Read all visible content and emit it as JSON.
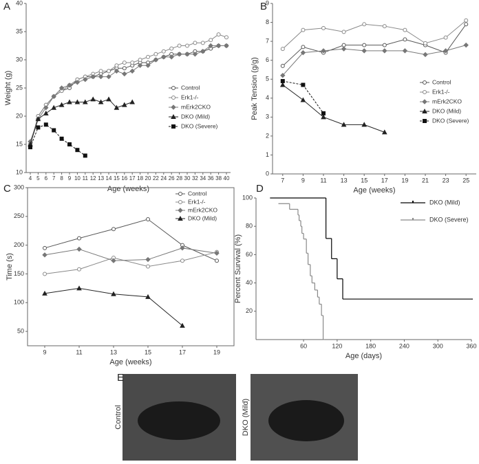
{
  "chart_data": [
    {
      "type": "line",
      "panel": "A",
      "x_label": "Age (weeks)",
      "y_label": "Weight (g)",
      "categories": [
        "4",
        "5",
        "6",
        "7",
        "8",
        "9",
        "10",
        "11",
        "12",
        "13",
        "14",
        "15",
        "16",
        "17",
        "18",
        "20",
        "22",
        "24",
        "26",
        "28",
        "30",
        "32",
        "34",
        "36",
        "38",
        "40"
      ],
      "ylim": [
        10,
        40
      ],
      "yticks": [
        10,
        15,
        20,
        25,
        30,
        35,
        40
      ],
      "series": [
        {
          "name": "Control",
          "color": "#555555",
          "marker": "open-circle",
          "values": [
            15,
            20,
            22,
            23.5,
            24.5,
            25,
            26.5,
            27,
            27,
            27.5,
            28,
            28.5,
            28.5,
            29,
            29.5,
            29.5,
            30,
            30.5,
            31,
            31,
            31,
            31.5,
            31.5,
            32,
            32.5,
            32.5
          ]
        },
        {
          "name": "Erk1-/-",
          "color": "#888888",
          "marker": "open-circle",
          "values": [
            15,
            20,
            22,
            23.5,
            24.5,
            25.5,
            26.5,
            27,
            27.5,
            28,
            28,
            29,
            29.5,
            29.5,
            30,
            30.5,
            31,
            31.5,
            32,
            32.5,
            32.5,
            33,
            33,
            33.5,
            34.5,
            34
          ]
        },
        {
          "name": "mErk2CKO",
          "color": "#777777",
          "marker": "diamond",
          "values": [
            15.5,
            19.5,
            21.5,
            23.5,
            25,
            25.5,
            26,
            26.5,
            27,
            27,
            27,
            28,
            27.5,
            28,
            29,
            29,
            30,
            30.5,
            30.5,
            31,
            31,
            31,
            31.5,
            32.5,
            32.5,
            32.5
          ]
        },
        {
          "name": "DKO (Mild)",
          "color": "#222222",
          "marker": "triangle",
          "values": [
            15,
            19.5,
            20.5,
            21.5,
            22,
            22.5,
            22.5,
            22.5,
            23,
            22.5,
            23,
            21.5,
            22,
            22.5,
            null,
            null,
            null,
            null,
            null,
            null,
            null,
            null,
            null,
            null,
            null,
            null
          ]
        },
        {
          "name": "DKO (Severe)",
          "color": "#111111",
          "marker": "square",
          "dash": true,
          "values": [
            14.5,
            18,
            18.5,
            17.5,
            16,
            15,
            14,
            13,
            null,
            null,
            null,
            null,
            null,
            null,
            null,
            null,
            null,
            null,
            null,
            null,
            null,
            null,
            null,
            null,
            null,
            null
          ]
        }
      ]
    },
    {
      "type": "line",
      "panel": "B",
      "x_label": "Age (weeks)",
      "y_label": "Peak Tension (g/g)",
      "x": [
        7,
        9,
        11,
        13,
        15,
        17,
        19,
        21,
        23,
        25
      ],
      "xlim": [
        6,
        26
      ],
      "xticks": [
        7,
        9,
        11,
        13,
        15,
        17,
        19,
        21,
        23,
        25
      ],
      "ylim": [
        0,
        9
      ],
      "yticks": [
        0,
        1,
        2,
        3,
        4,
        5,
        6,
        7,
        8,
        9
      ],
      "series": [
        {
          "name": "Control",
          "color": "#555555",
          "marker": "open-circle",
          "values": [
            5.7,
            6.7,
            6.4,
            6.8,
            6.8,
            6.8,
            7.1,
            6.8,
            6.4,
            7.9
          ]
        },
        {
          "name": "Erk1-/-",
          "color": "#888888",
          "marker": "open-circle",
          "values": [
            6.6,
            7.6,
            7.7,
            7.5,
            7.9,
            7.8,
            7.6,
            6.9,
            7.2,
            8.1
          ]
        },
        {
          "name": "mErk2CKO",
          "color": "#777777",
          "marker": "diamond",
          "values": [
            5.2,
            6.4,
            6.5,
            6.6,
            6.5,
            6.5,
            6.5,
            6.3,
            6.5,
            6.8
          ]
        },
        {
          "name": "DKO (Mild)",
          "color": "#222222",
          "marker": "triangle",
          "values": [
            4.7,
            3.9,
            3.0,
            2.6,
            2.6,
            2.2,
            null,
            null,
            null,
            null
          ]
        },
        {
          "name": "DKO (Severe)",
          "color": "#111111",
          "marker": "square",
          "dash": true,
          "values": [
            4.9,
            4.7,
            3.2,
            null,
            null,
            null,
            null,
            null,
            null,
            null
          ]
        }
      ]
    },
    {
      "type": "line",
      "panel": "C",
      "x_label": "Age (weeks)",
      "y_label": "Time (s)",
      "x": [
        9,
        11,
        13,
        15,
        17,
        19
      ],
      "xlim": [
        8,
        20
      ],
      "xticks": [
        9,
        11,
        13,
        15,
        17,
        19
      ],
      "ylim": [
        25,
        300
      ],
      "yticks": [
        50,
        100,
        150,
        200,
        250,
        300
      ],
      "box": true,
      "series": [
        {
          "name": "Control",
          "color": "#555555",
          "marker": "open-circle",
          "values": [
            195,
            212,
            228,
            245,
            200,
            173
          ]
        },
        {
          "name": "Erk1-/-",
          "color": "#888888",
          "marker": "open-circle",
          "values": [
            150,
            158,
            178,
            163,
            173,
            188
          ]
        },
        {
          "name": "mErk2CKO",
          "color": "#777777",
          "marker": "diamond",
          "values": [
            183,
            193,
            173,
            175,
            195,
            186
          ]
        },
        {
          "name": "DKO (Mild)",
          "color": "#222222",
          "marker": "triangle",
          "values": [
            116,
            125,
            115,
            110,
            60,
            null
          ]
        }
      ]
    },
    {
      "type": "step",
      "panel": "D",
      "x_label": "Age (days)",
      "y_label": "Percent Survival (%)",
      "xlim": [
        -25,
        360
      ],
      "xticks": [
        60,
        120,
        180,
        240,
        300,
        360
      ],
      "ylim": [
        0,
        100
      ],
      "yticks": [
        20,
        40,
        60,
        80,
        100
      ],
      "series": [
        {
          "name": "DKO (Mild)",
          "color": "#000000",
          "x": [
            0,
            100,
            110,
            120,
            130,
            360
          ],
          "values": [
            100,
            71.4,
            57.1,
            42.9,
            28.6,
            28.6
          ]
        },
        {
          "name": "DKO (Severe)",
          "color": "#888888",
          "x": [
            15,
            35,
            50,
            52,
            55,
            57,
            60,
            65,
            68,
            72,
            75,
            80,
            85,
            88,
            92,
            95
          ],
          "values": [
            96,
            92,
            88,
            84,
            80,
            75,
            71,
            61,
            53,
            45,
            40,
            35,
            30,
            25,
            17,
            0
          ]
        }
      ]
    }
  ],
  "photos": {
    "panel": "E",
    "labels": [
      "Control",
      "DKO (Mild)"
    ]
  }
}
